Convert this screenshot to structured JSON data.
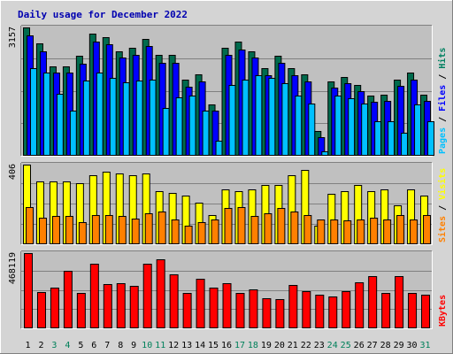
{
  "chart_data": {
    "type": "bar",
    "title": "Daily usage for December 2022",
    "categories": [
      "1",
      "2",
      "3",
      "4",
      "5",
      "6",
      "7",
      "8",
      "9",
      "10",
      "11",
      "12",
      "13",
      "14",
      "15",
      "16",
      "17",
      "18",
      "19",
      "20",
      "21",
      "22",
      "23",
      "24",
      "25",
      "26",
      "27",
      "28",
      "29",
      "30",
      "31"
    ],
    "weekend_days": [
      "3",
      "4",
      "10",
      "11",
      "17",
      "18",
      "24",
      "25",
      "31"
    ],
    "panels": [
      {
        "name": "hits-files-pages",
        "ymax": 3157,
        "ymax_label": "3157",
        "side_labels": [
          {
            "text": "Pages",
            "color": "#00c0ff"
          },
          {
            "text": " / ",
            "color": "#000000"
          },
          {
            "text": "Files",
            "color": "#0000ff"
          },
          {
            "text": " / ",
            "color": "#000000"
          },
          {
            "text": "Hits",
            "color": "#008060"
          }
        ],
        "series": [
          {
            "name": "Hits",
            "color": "#006b4d",
            "values": [
              3157,
              2760,
              2200,
              2200,
              2460,
              3000,
              2920,
              2580,
              2660,
              2880,
              2480,
              2480,
              1870,
              2000,
              1270,
              2660,
              2800,
              2580,
              2160,
              2460,
              2160,
              2000,
              620,
              1830,
              1940,
              1740,
              1490,
              1510,
              1870,
              2050,
              1510
            ]
          },
          {
            "name": "Files",
            "color": "#0000ff",
            "values": [
              2960,
              2580,
              2040,
              2040,
              2260,
              2800,
              2740,
              2410,
              2490,
              2700,
              2290,
              2290,
              1700,
              1830,
              1110,
              2490,
              2620,
              2410,
              1980,
              2290,
              1990,
              1830,
              460,
              1680,
              1780,
              1590,
              1330,
              1340,
              1710,
              1880,
              1340
            ]
          },
          {
            "name": "Pages",
            "color": "#00c0ff",
            "values": [
              2160,
              2040,
              1520,
              1100,
              1860,
              2040,
              1920,
              1800,
              1840,
              1880,
              1180,
              1440,
              1480,
              1110,
              370,
              1740,
              1880,
              1980,
              1920,
              1790,
              1480,
              1280,
              100,
              1480,
              1410,
              1280,
              860,
              860,
              560,
              1260,
              840
            ]
          }
        ]
      },
      {
        "name": "visits-sites",
        "ymax": 406,
        "ymax_label": "406",
        "side_labels": [
          {
            "text": "Sites",
            "color": "#ff8000"
          },
          {
            "text": " / ",
            "color": "#000000"
          },
          {
            "text": "Visits",
            "color": "#ffff00"
          }
        ],
        "series": [
          {
            "name": "Visits",
            "color": "#ffff00",
            "values": [
              406,
              320,
              320,
              320,
              310,
              350,
              370,
              360,
              350,
              360,
              270,
              260,
              250,
              210,
              150,
              280,
              270,
              280,
              300,
              300,
              350,
              380,
              95,
              255,
              270,
              300,
              270,
              280,
              200,
              280,
              250
            ]
          },
          {
            "name": "Sites",
            "color": "#ff8000",
            "values": [
              190,
              135,
              145,
              145,
              115,
              150,
              150,
              145,
              130,
              160,
              165,
              125,
              95,
              115,
              125,
              185,
              190,
              145,
              160,
              185,
              165,
              150,
              125,
              125,
              120,
              125,
              135,
              125,
              150,
              125,
              150
            ]
          }
        ]
      },
      {
        "name": "kbytes",
        "ymax": 468119,
        "ymax_label": "468119",
        "side_labels": [
          {
            "text": "KBytes",
            "color": "#ff0000"
          }
        ],
        "series": [
          {
            "name": "KBytes",
            "color": "#ff0000",
            "values": [
              468119,
              228000,
              255000,
              360000,
              223000,
              400000,
              275000,
              279000,
              263000,
              400000,
              430000,
              335000,
              223000,
              307000,
              255000,
              282000,
              223000,
              240000,
              186000,
              180000,
              270000,
              230000,
              212000,
              196000,
              230000,
              289000,
              327000,
              223000,
              327000,
              223000,
              208000
            ]
          }
        ]
      }
    ]
  }
}
